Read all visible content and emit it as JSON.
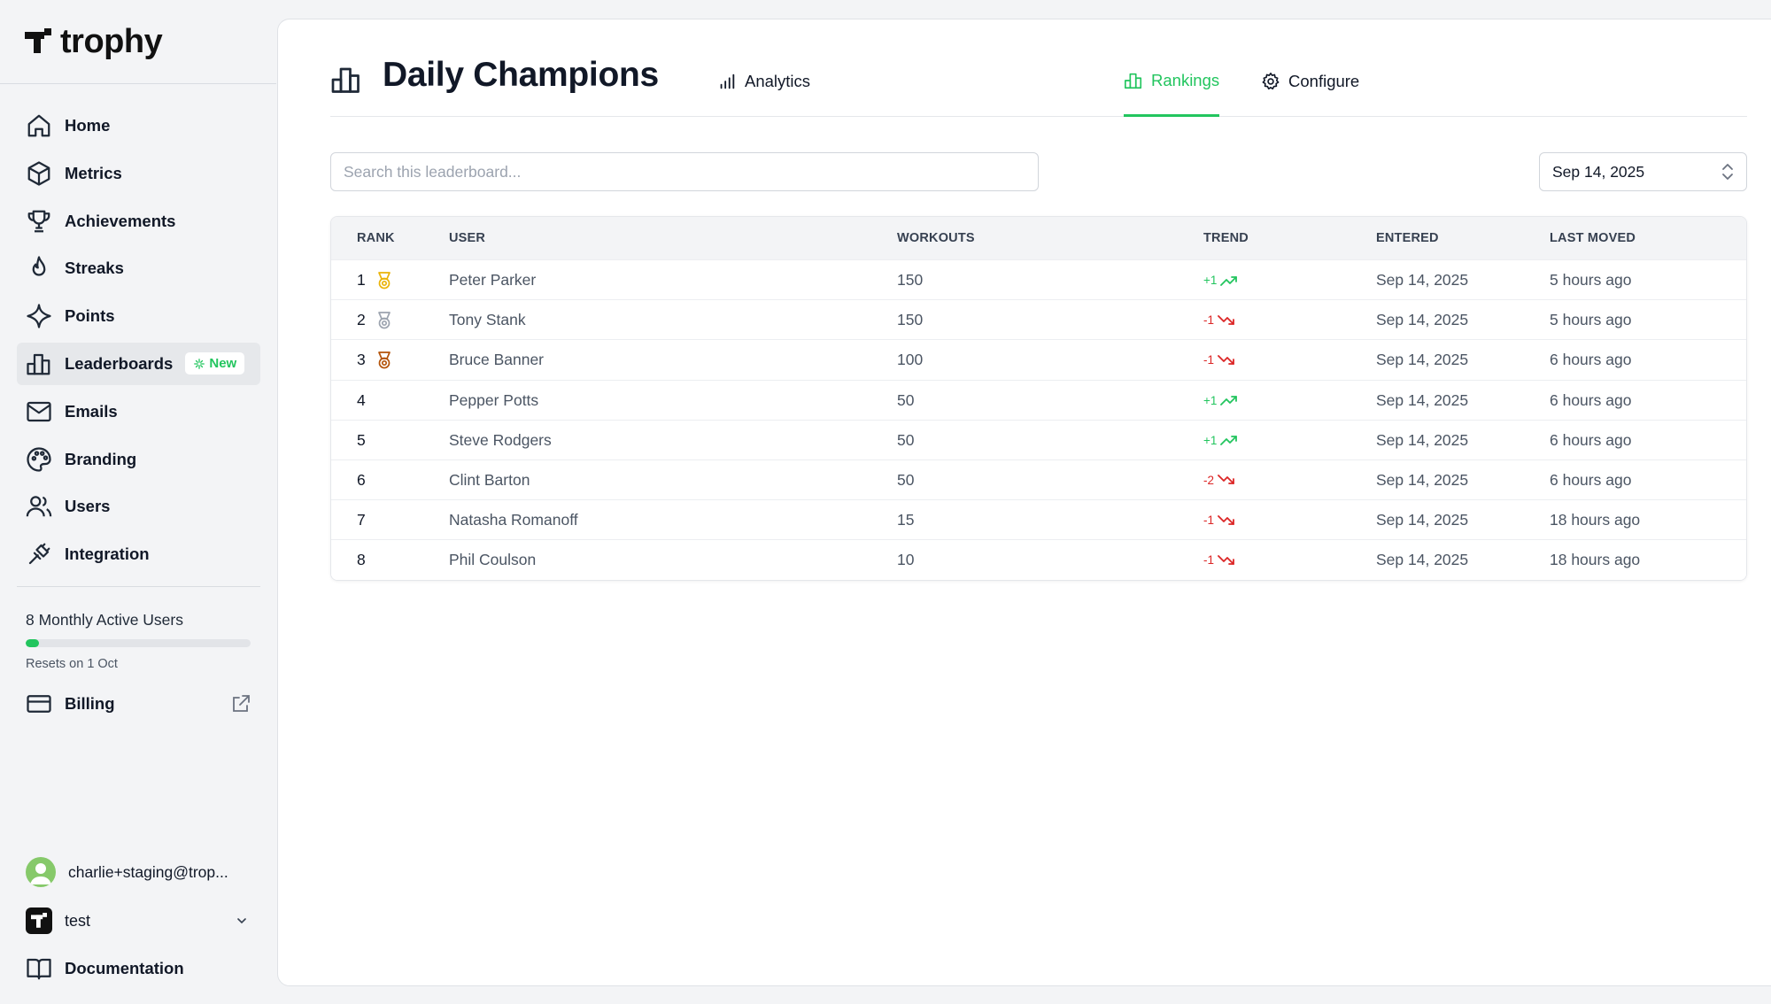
{
  "app": {
    "name": "trophy"
  },
  "sidebar": {
    "items": [
      {
        "label": "Home",
        "icon": "home-icon"
      },
      {
        "label": "Metrics",
        "icon": "cube-icon"
      },
      {
        "label": "Achievements",
        "icon": "trophy-icon"
      },
      {
        "label": "Streaks",
        "icon": "flame-icon"
      },
      {
        "label": "Points",
        "icon": "sparkle-icon"
      },
      {
        "label": "Leaderboards",
        "icon": "bar-chart-icon",
        "badge": "New",
        "active": true
      },
      {
        "label": "Emails",
        "icon": "mail-icon"
      },
      {
        "label": "Branding",
        "icon": "palette-icon"
      },
      {
        "label": "Users",
        "icon": "users-icon"
      },
      {
        "label": "Integration",
        "icon": "plug-icon"
      }
    ],
    "usage": {
      "label": "8 Monthly Active Users",
      "fraction": 0.06,
      "reset_text": "Resets on 1 Oct"
    },
    "billing_label": "Billing",
    "account_email": "charlie+staging@trop...",
    "org_name": "test",
    "docs_label": "Documentation"
  },
  "header": {
    "title": "Daily Champions",
    "tabs": [
      {
        "label": "Analytics",
        "icon": "analytics-icon",
        "active": false
      },
      {
        "label": "Rankings",
        "icon": "rankings-icon",
        "active": true
      },
      {
        "label": "Configure",
        "icon": "gear-icon",
        "active": false
      }
    ]
  },
  "search": {
    "placeholder": "Search this leaderboard...",
    "value": ""
  },
  "date_picker": {
    "value": "Sep 14, 2025"
  },
  "table": {
    "columns": [
      "RANK",
      "USER",
      "WORKOUTS",
      "TREND",
      "ENTERED",
      "LAST MOVED"
    ],
    "rows": [
      {
        "rank": "1",
        "medal": "gold",
        "user": "Peter Parker",
        "workouts": "150",
        "trend": "+1",
        "direction": "up",
        "entered": "Sep 14, 2025",
        "last_moved": "5 hours ago"
      },
      {
        "rank": "2",
        "medal": "silver",
        "user": "Tony Stank",
        "workouts": "150",
        "trend": "-1",
        "direction": "down",
        "entered": "Sep 14, 2025",
        "last_moved": "5 hours ago"
      },
      {
        "rank": "3",
        "medal": "bronze",
        "user": "Bruce Banner",
        "workouts": "100",
        "trend": "-1",
        "direction": "down",
        "entered": "Sep 14, 2025",
        "last_moved": "6 hours ago"
      },
      {
        "rank": "4",
        "medal": "",
        "user": "Pepper Potts",
        "workouts": "50",
        "trend": "+1",
        "direction": "up",
        "entered": "Sep 14, 2025",
        "last_moved": "6 hours ago"
      },
      {
        "rank": "5",
        "medal": "",
        "user": "Steve Rodgers",
        "workouts": "50",
        "trend": "+1",
        "direction": "up",
        "entered": "Sep 14, 2025",
        "last_moved": "6 hours ago"
      },
      {
        "rank": "6",
        "medal": "",
        "user": "Clint Barton",
        "workouts": "50",
        "trend": "-2",
        "direction": "down",
        "entered": "Sep 14, 2025",
        "last_moved": "6 hours ago"
      },
      {
        "rank": "7",
        "medal": "",
        "user": "Natasha Romanoff",
        "workouts": "15",
        "trend": "-1",
        "direction": "down",
        "entered": "Sep 14, 2025",
        "last_moved": "18 hours ago"
      },
      {
        "rank": "8",
        "medal": "",
        "user": "Phil Coulson",
        "workouts": "10",
        "trend": "-1",
        "direction": "down",
        "entered": "Sep 14, 2025",
        "last_moved": "18 hours ago"
      }
    ]
  },
  "colors": {
    "accent": "#22c55e",
    "down": "#dc2626",
    "gold": "#eab308",
    "silver": "#9ca3af",
    "bronze": "#b45309"
  }
}
